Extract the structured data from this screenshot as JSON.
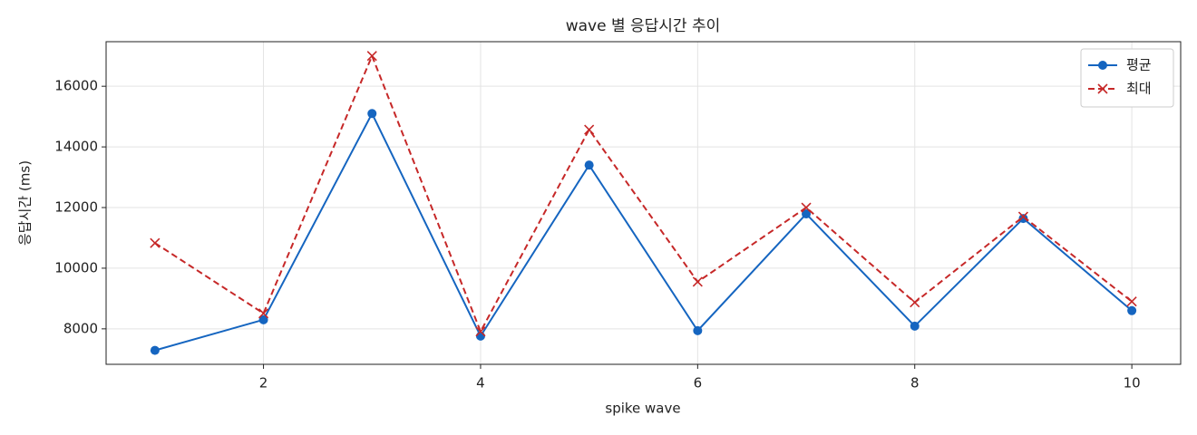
{
  "chart_data": {
    "type": "line",
    "title": "wave 별 응답시간 추이",
    "xlabel": "spike wave",
    "ylabel": "응답시간 (ms)",
    "x": [
      1,
      2,
      3,
      4,
      5,
      6,
      7,
      8,
      9,
      10
    ],
    "series": [
      {
        "name": "평균",
        "color": "#1565c0",
        "marker": "o",
        "dash": "solid",
        "values": [
          7290,
          8300,
          15100,
          7760,
          13400,
          7940,
          11790,
          8090,
          11640,
          8600
        ]
      },
      {
        "name": "최대",
        "color": "#c62828",
        "marker": "x",
        "dash": "dashed",
        "values": [
          10830,
          8510,
          17000,
          7910,
          14570,
          9550,
          12000,
          8870,
          11700,
          8900
        ]
      }
    ],
    "xlim": [
      0.55,
      10.45
    ],
    "xticks": [
      2,
      4,
      6,
      8,
      10
    ],
    "ylim": [
      6830,
      17470
    ],
    "yticks": [
      8000,
      10000,
      12000,
      14000,
      16000
    ],
    "grid": true,
    "legend": "upper right"
  }
}
